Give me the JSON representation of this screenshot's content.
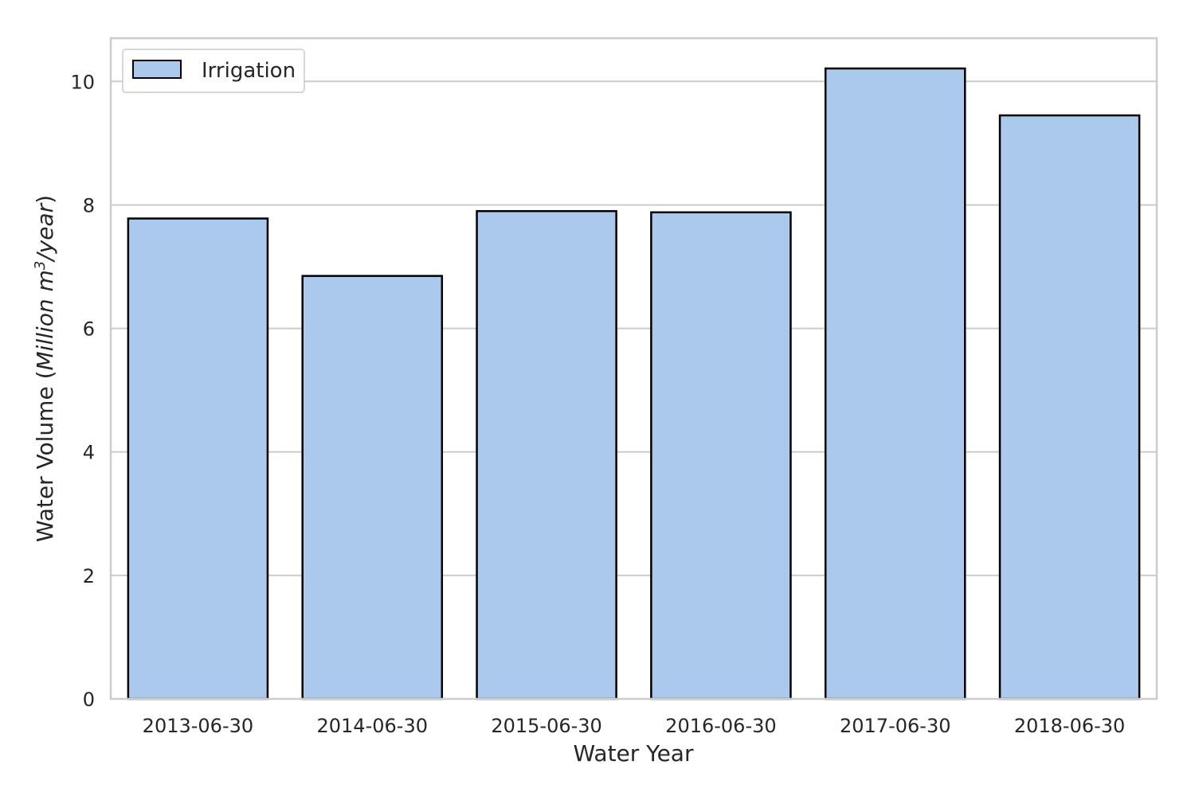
{
  "chart_data": {
    "type": "bar",
    "categories": [
      "2013-06-30",
      "2014-06-30",
      "2015-06-30",
      "2016-06-30",
      "2017-06-30",
      "2018-06-30"
    ],
    "series": [
      {
        "name": "Irrigation",
        "values": [
          7.78,
          6.85,
          7.9,
          7.88,
          10.21,
          9.45
        ],
        "color": "#abc9ed",
        "edge_color": "#000000"
      }
    ],
    "xlabel": "Water Year",
    "ylabel": {
      "prefix": "Water Volume (",
      "unit_main": "Million m",
      "unit_exp": "3",
      "unit_rest": "/year",
      "suffix": ")"
    },
    "ylim": [
      0,
      10.7
    ],
    "yticks": [
      0,
      2,
      4,
      6,
      8,
      10
    ],
    "grid": "horizontal",
    "legend_position": "top-left",
    "grid_color": "#cccccc",
    "spine_color": "#cccccc"
  }
}
